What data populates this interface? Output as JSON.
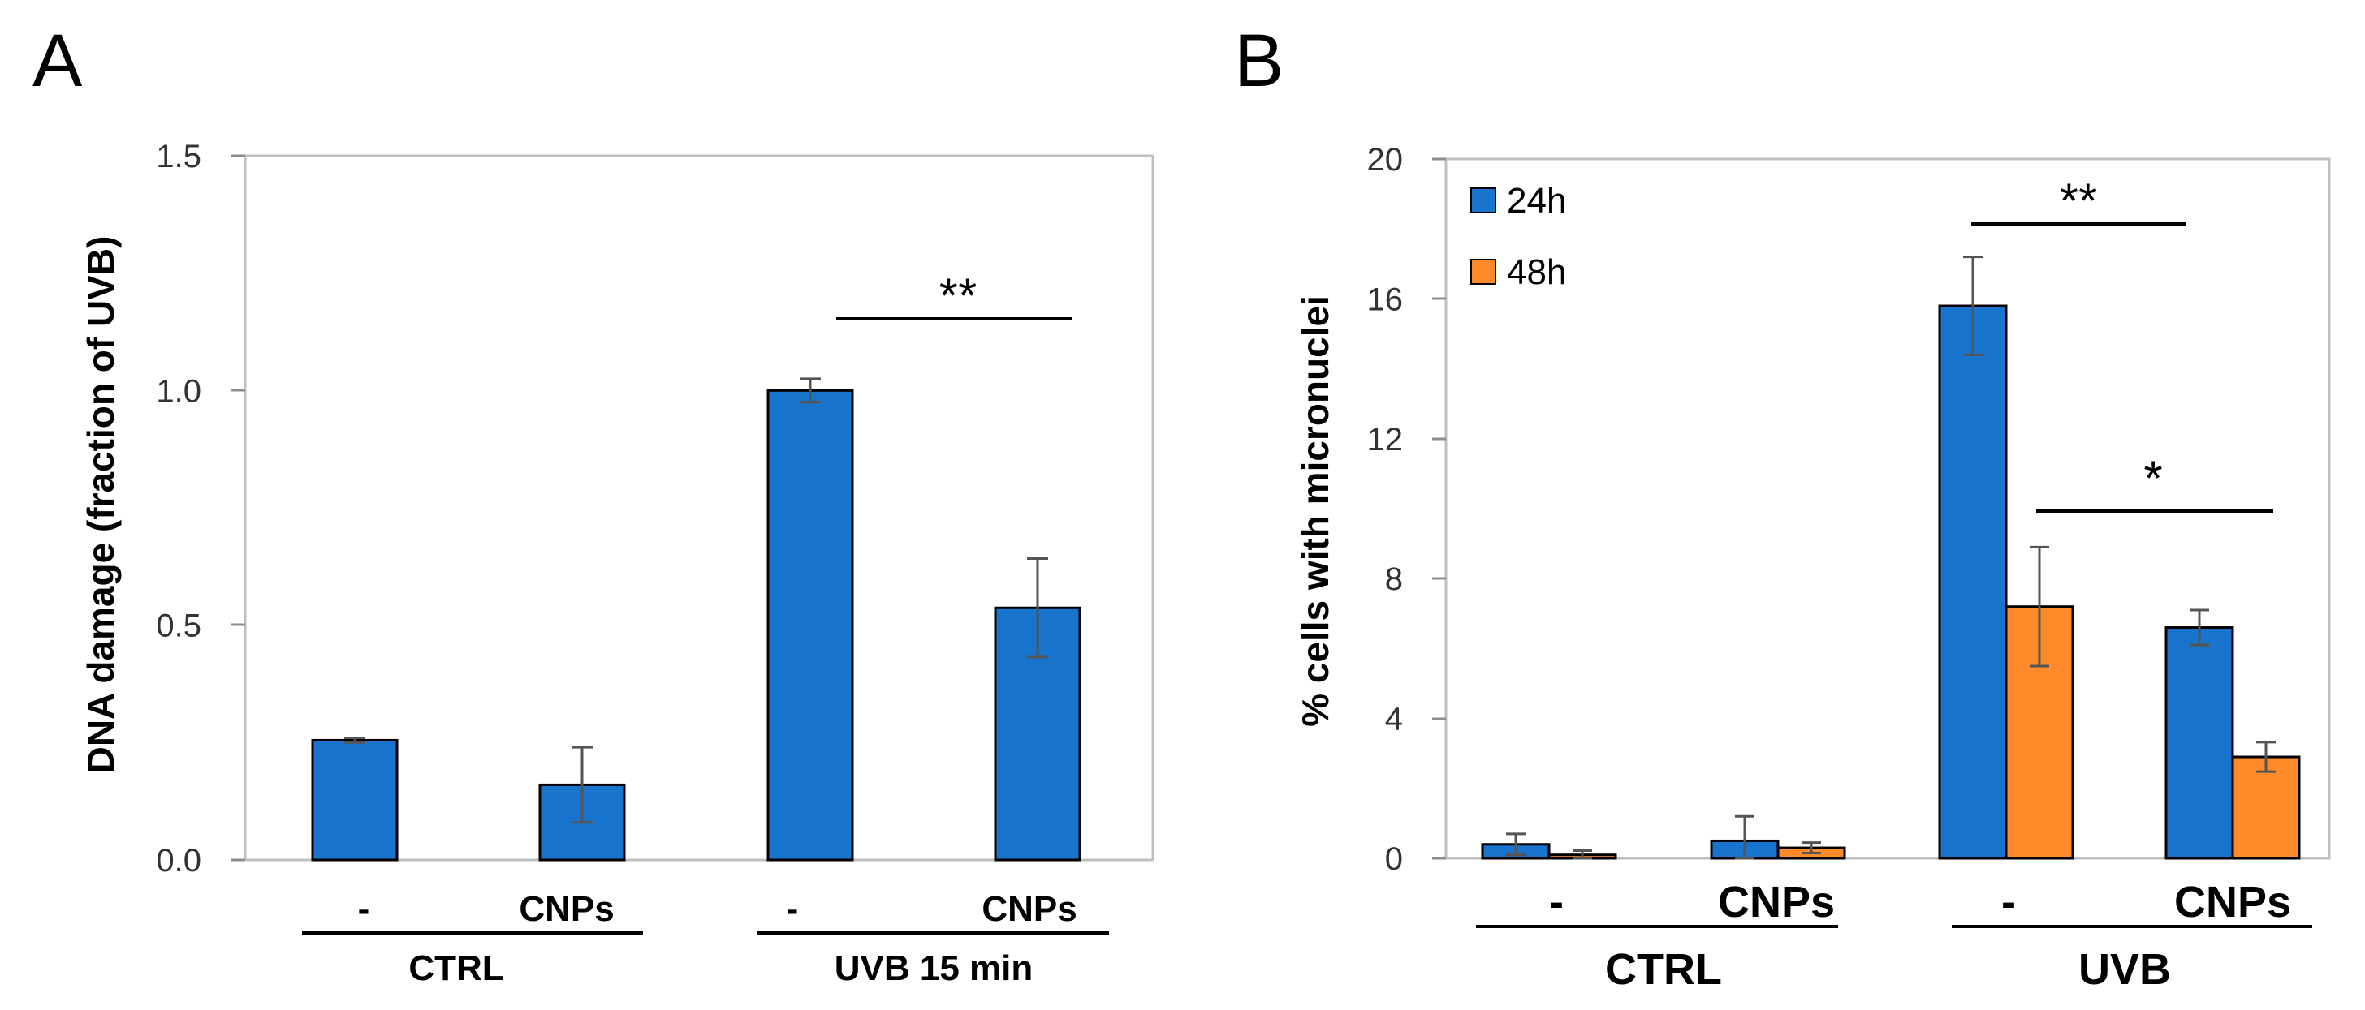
{
  "chart_data": [
    {
      "panel": "A",
      "type": "bar",
      "title": "",
      "xlabel": "",
      "ylabel": "DNA damage (fraction of UVB)",
      "ylim": [
        0,
        1.5
      ],
      "yticks": [
        "0.0",
        "0.5",
        "1.0",
        "1.5"
      ],
      "ytick_values": [
        0,
        0.5,
        1.0,
        1.5
      ],
      "categories": [
        "-",
        "CNPs",
        "-",
        "CNPs"
      ],
      "groups": [
        {
          "label": "CTRL",
          "categories": [
            0,
            1
          ]
        },
        {
          "label": "UVB 15 min",
          "categories": [
            2,
            3
          ]
        }
      ],
      "series": [
        {
          "name": "DNA damage",
          "color": "#1874CD",
          "values": [
            0.255,
            0.16,
            1.0,
            0.537
          ],
          "errors": [
            0.005,
            0.08,
            0.025,
            0.105
          ]
        }
      ],
      "significance": [
        {
          "label": "**",
          "from": 2,
          "to": 3
        }
      ],
      "grid": false
    },
    {
      "panel": "B",
      "type": "bar",
      "title": "",
      "xlabel": "",
      "ylabel": "% cells with micronuclei",
      "ylim": [
        0,
        20
      ],
      "yticks": [
        "0",
        "4",
        "8",
        "12",
        "16",
        "20"
      ],
      "ytick_values": [
        0,
        4,
        8,
        12,
        16,
        20
      ],
      "categories": [
        "-",
        "CNPs",
        "-",
        "CNPs"
      ],
      "groups": [
        {
          "label": "CTRL",
          "categories": [
            0,
            1
          ]
        },
        {
          "label": "UVB",
          "categories": [
            2,
            3
          ]
        }
      ],
      "series": [
        {
          "name": "24h",
          "color": "#1874CD",
          "values": [
            0.4,
            0.5,
            15.8,
            6.6
          ],
          "errors": [
            0.3,
            0.7,
            1.4,
            0.5
          ]
        },
        {
          "name": "48h",
          "color": "#FF8A2A",
          "values": [
            0.1,
            0.3,
            7.2,
            2.9
          ],
          "errors": [
            0.12,
            0.15,
            1.7,
            0.42
          ]
        }
      ],
      "significance": [
        {
          "label": "**",
          "from": 2,
          "to": 3
        },
        {
          "label": "*",
          "from": 2,
          "to": 3
        }
      ],
      "legend": {
        "position": "top-left",
        "entries": [
          "24h",
          "48h"
        ]
      },
      "grid": false
    }
  ]
}
